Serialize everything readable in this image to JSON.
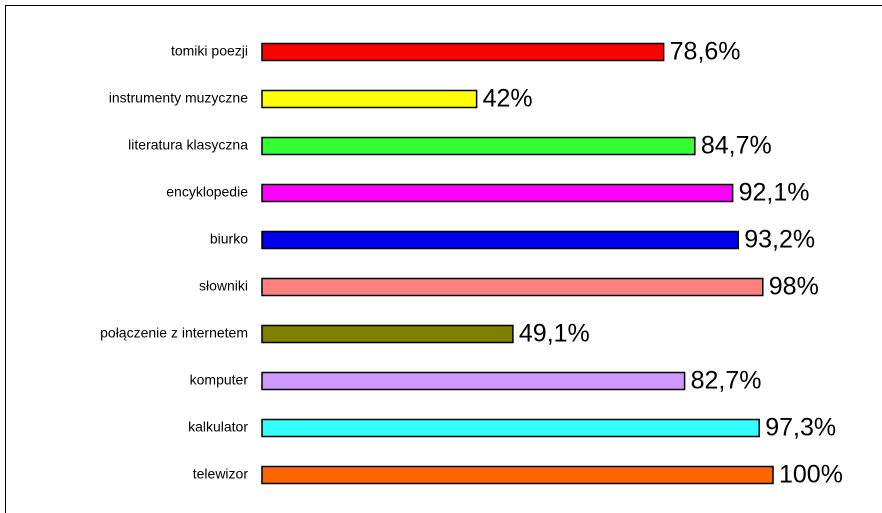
{
  "chart_data": {
    "type": "bar",
    "orientation": "horizontal",
    "categories": [
      "tomiki poezji",
      "instrumenty muzyczne",
      "literatura klasyczna",
      "encyklopedie",
      "biurko",
      "słowniki",
      "połączenie z internetem",
      "komputer",
      "kalkulator",
      "telewizor"
    ],
    "values": [
      78.6,
      42,
      84.7,
      92.1,
      93.2,
      98,
      49.1,
      82.7,
      97.3,
      100
    ],
    "value_labels": [
      "78,6%",
      "42%",
      "84,7%",
      "92,1%",
      "93,2%",
      "98%",
      "49,1%",
      "82,7%",
      "97,3%",
      "100%"
    ],
    "colors": [
      "#ff0000",
      "#ffff00",
      "#33ff33",
      "#ff00ff",
      "#0000ee",
      "#ff8080",
      "#808000",
      "#cc99ff",
      "#33ffff",
      "#ff6600"
    ]
  }
}
